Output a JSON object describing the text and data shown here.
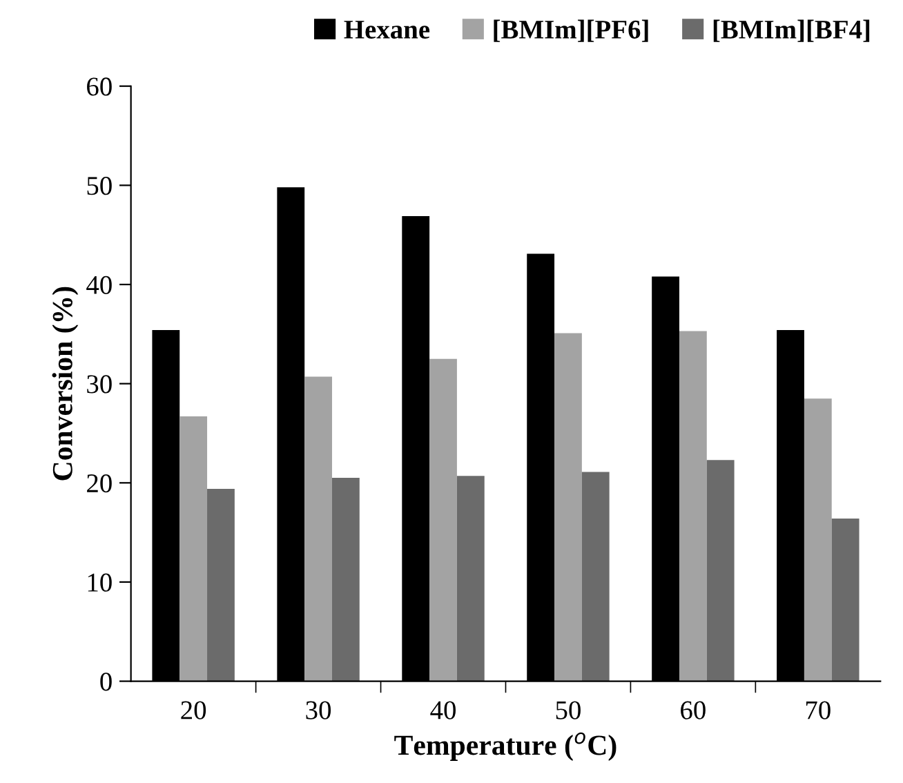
{
  "chart_data": {
    "type": "bar",
    "xlabel": "Temperature ($^{o}$C)",
    "ylabel": "Conversion (%)",
    "categories": [
      "20",
      "30",
      "40",
      "50",
      "60",
      "70"
    ],
    "series": [
      {
        "name": "Hexane",
        "color": "#000000",
        "values": [
          35.4,
          49.8,
          46.9,
          43.1,
          40.8,
          35.4
        ]
      },
      {
        "name": "[BMIm][PF6]",
        "color": "#a3a3a3",
        "values": [
          26.7,
          30.7,
          32.5,
          35.1,
          35.3,
          28.5
        ]
      },
      {
        "name": "[BMIm][BF4]",
        "color": "#6b6b6b",
        "values": [
          19.4,
          20.5,
          20.7,
          21.1,
          22.3,
          16.4
        ]
      }
    ],
    "ylim": [
      0,
      60
    ],
    "yticks": [
      0,
      10,
      20,
      30,
      40,
      50,
      60
    ],
    "grid": false,
    "legend": "top right"
  }
}
